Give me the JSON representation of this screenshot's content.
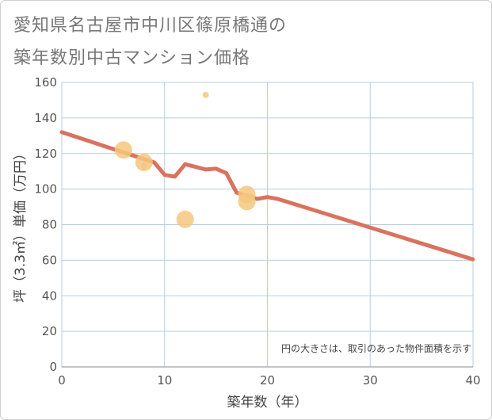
{
  "title_line1": "愛知県名古屋市中川区篠原橋通の",
  "title_line2": "築年数別中古マンション価格",
  "chart_data": {
    "type": "scatter",
    "title": "愛知県名古屋市中川区篠原橋通の築年数別中古マンション価格",
    "xlabel": "築年数（年）",
    "ylabel": "坪（3.3㎡）単価（万円）",
    "xlim": [
      0,
      40
    ],
    "ylim": [
      0,
      160
    ],
    "xticks": [
      0,
      10,
      20,
      30,
      40
    ],
    "yticks": [
      0,
      20,
      40,
      60,
      80,
      100,
      120,
      140,
      160
    ],
    "note": "円の大きさは、取引のあった物件面積を示す",
    "colors": {
      "points": "#f5c77e",
      "line": "#d9735f",
      "grid": "#b8cde0"
    },
    "points": [
      {
        "x": 6,
        "y": 122,
        "size": 3
      },
      {
        "x": 8,
        "y": 115,
        "size": 3
      },
      {
        "x": 8,
        "y": 113,
        "size": 1
      },
      {
        "x": 12,
        "y": 83,
        "size": 3
      },
      {
        "x": 14,
        "y": 153,
        "size": 1
      },
      {
        "x": 18,
        "y": 97,
        "size": 3
      },
      {
        "x": 18,
        "y": 93,
        "size": 3
      }
    ],
    "trend": [
      {
        "x": 0,
        "y": 132
      },
      {
        "x": 9,
        "y": 115
      },
      {
        "x": 10,
        "y": 108
      },
      {
        "x": 11,
        "y": 107
      },
      {
        "x": 12,
        "y": 114
      },
      {
        "x": 14,
        "y": 111
      },
      {
        "x": 15,
        "y": 111.5
      },
      {
        "x": 16,
        "y": 109
      },
      {
        "x": 17,
        "y": 98
      },
      {
        "x": 19,
        "y": 94.5
      },
      {
        "x": 20,
        "y": 95.5
      },
      {
        "x": 21,
        "y": 94.5
      },
      {
        "x": 40,
        "y": 60.5
      }
    ]
  }
}
